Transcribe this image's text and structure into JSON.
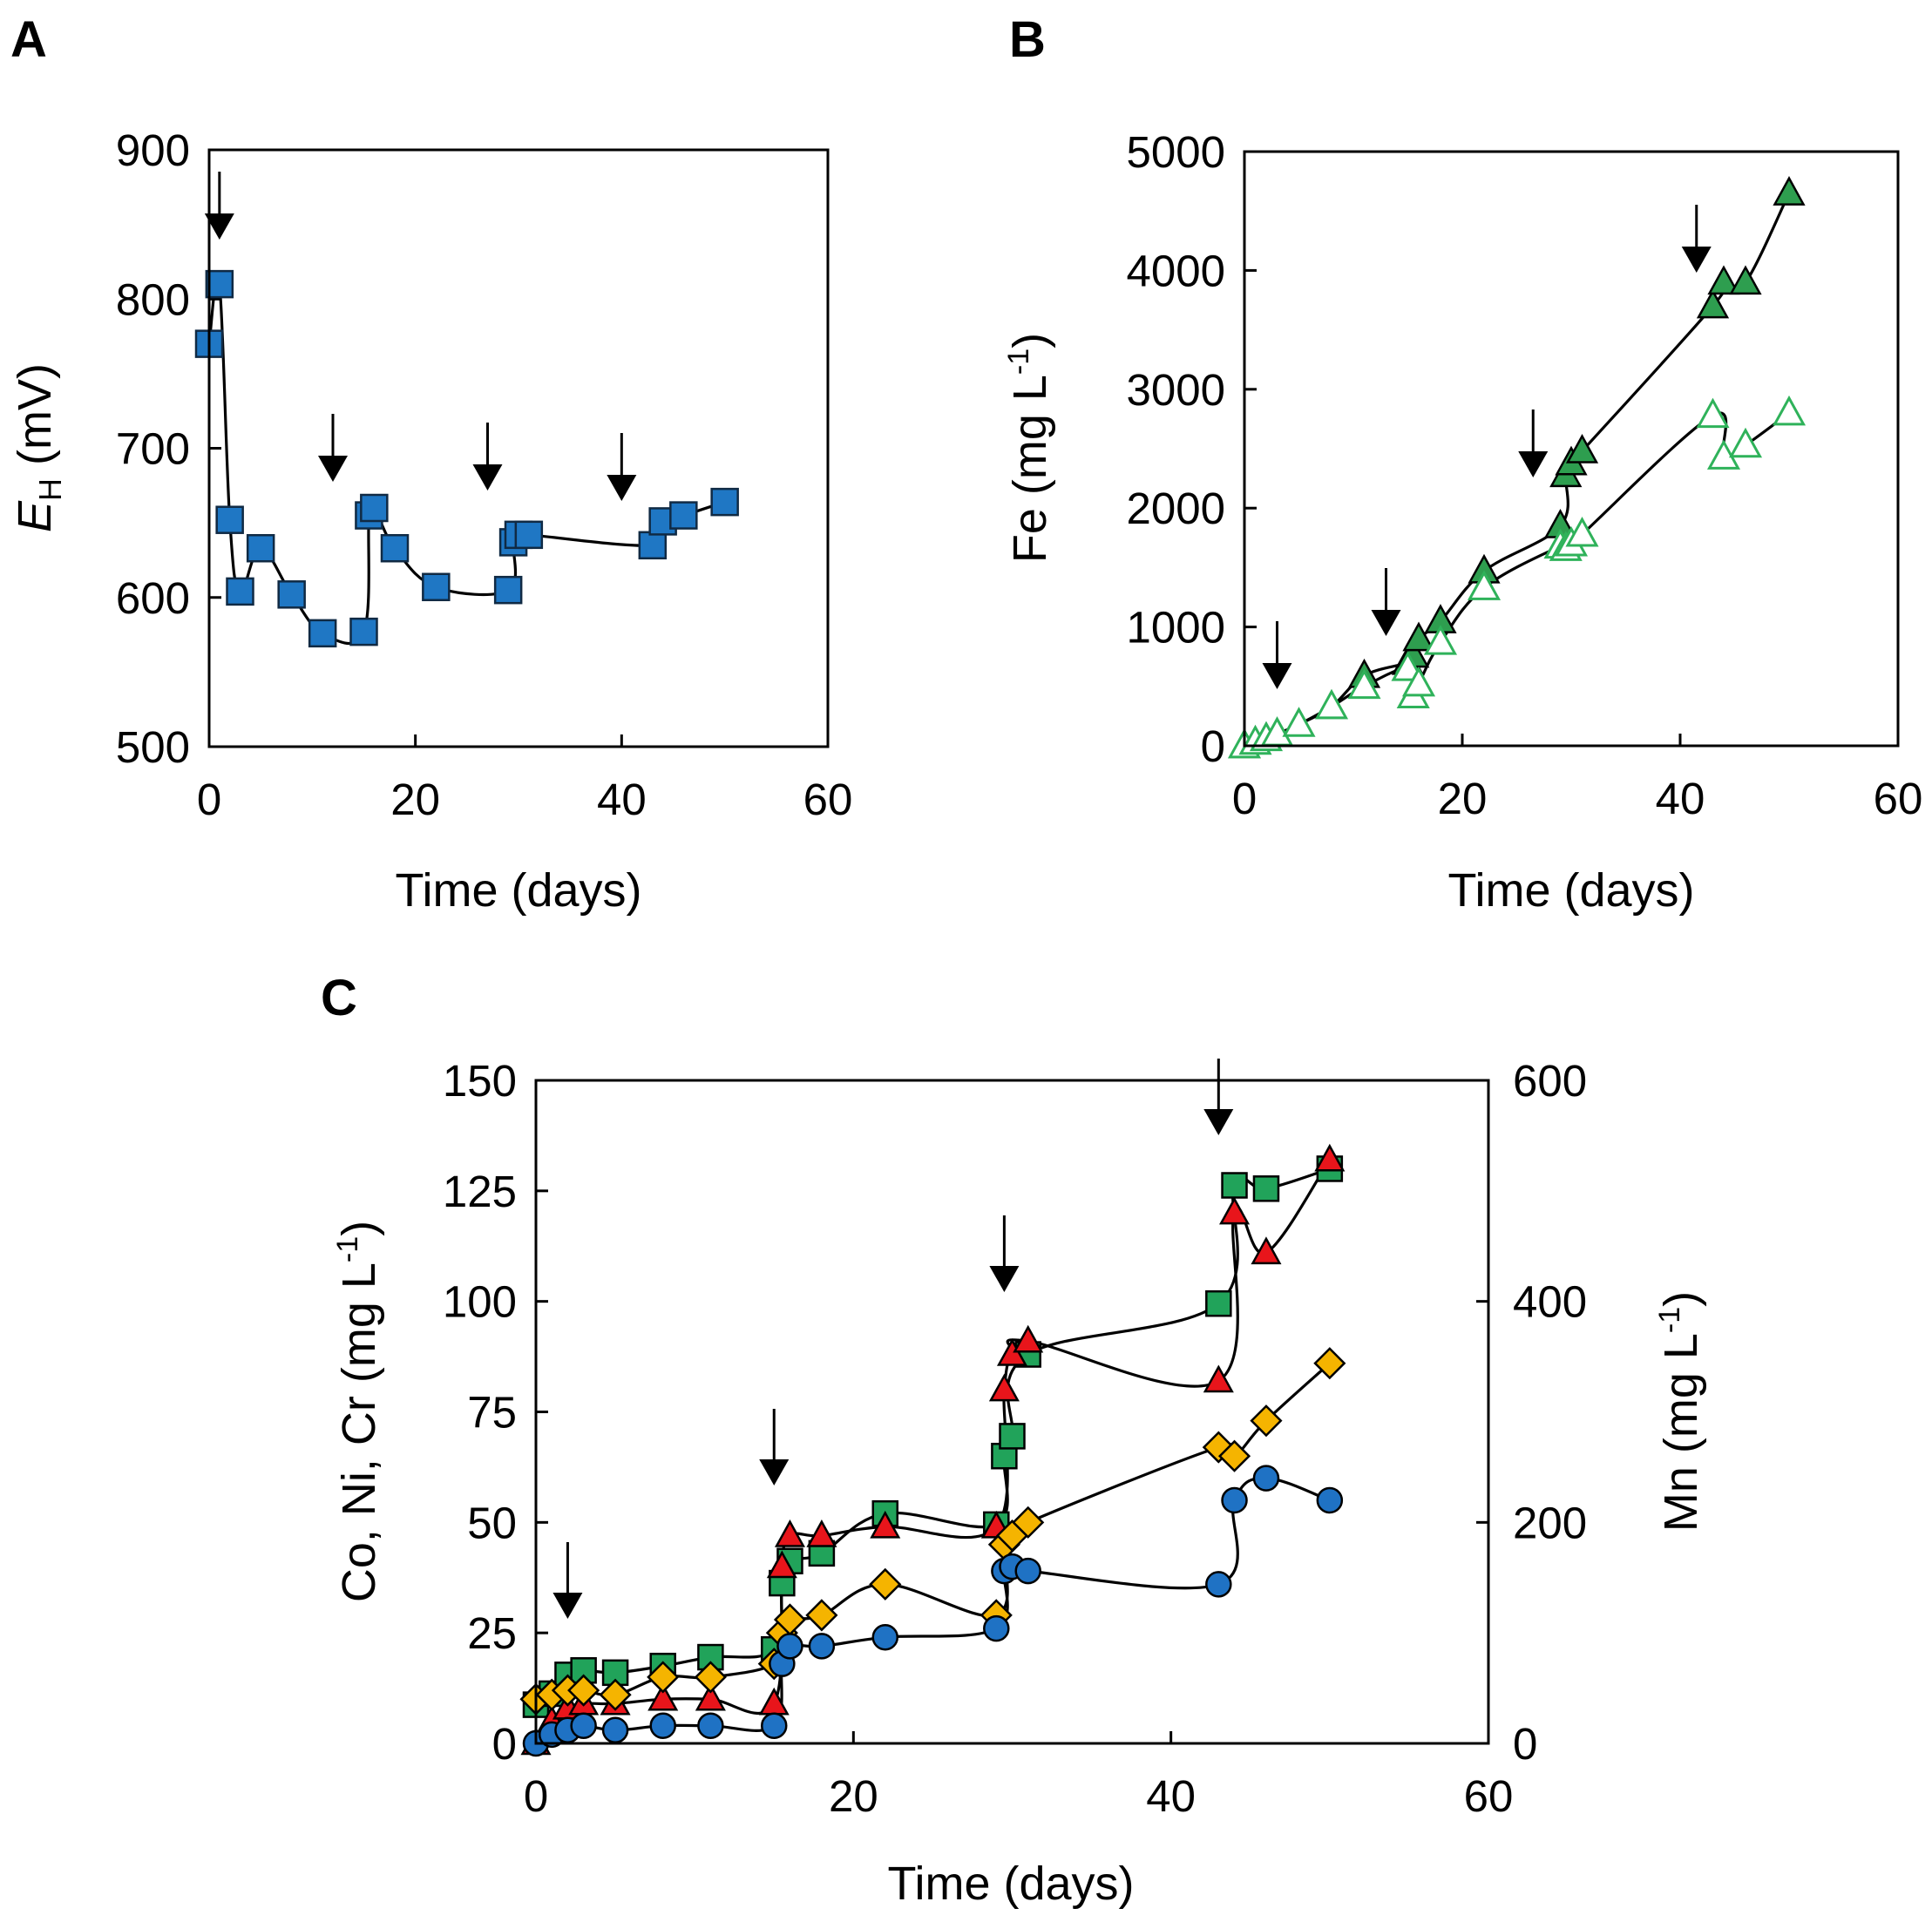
{
  "chart_data": [
    {
      "panel": "A",
      "type": "line",
      "xlabel": "Time (days)",
      "ylabel_main": "E",
      "ylabel_sub": "H",
      "ylabel_unit": " (mV)",
      "xlim": [
        0,
        60
      ],
      "ylim": [
        500,
        900
      ],
      "xticks": [
        "0",
        "20",
        "40",
        "60"
      ],
      "yticks": [
        "500",
        "600",
        "700",
        "800",
        "900"
      ],
      "series": [
        {
          "name": "EH",
          "marker": "square",
          "fill": "#1f77c4",
          "stroke": "#102a44",
          "x": [
            0,
            1,
            2,
            3,
            5,
            8,
            11,
            15,
            15.5,
            16,
            18,
            22,
            29,
            29.5,
            30,
            31,
            43,
            44,
            46,
            50
          ],
          "y": [
            770,
            810,
            652,
            604,
            633,
            602,
            576,
            577,
            655,
            660,
            633,
            607,
            605,
            637,
            642,
            642,
            635,
            651,
            655,
            664
          ]
        }
      ],
      "arrows_x": [
        1,
        12,
        27,
        40
      ]
    },
    {
      "panel": "B",
      "type": "line",
      "xlabel": "Time (days)",
      "ylabel_text": "Fe (mg L",
      "ylabel_sup": "-1",
      "ylabel_close": ")",
      "xlim": [
        0,
        60
      ],
      "ylim": [
        0,
        5000
      ],
      "xticks": [
        "0",
        "20",
        "40",
        "60"
      ],
      "yticks": [
        "0",
        "1000",
        "2000",
        "3000",
        "4000",
        "5000"
      ],
      "series": [
        {
          "name": "Fe filled",
          "marker": "triangle",
          "fill": "#2e9e4f",
          "stroke": "#000000",
          "x": [
            0,
            1,
            2,
            3,
            5,
            8,
            11,
            15,
            15.5,
            16,
            18,
            22,
            29,
            29.5,
            30,
            31,
            43,
            44,
            46,
            50
          ],
          "y": [
            0,
            30,
            60,
            100,
            180,
            330,
            590,
            700,
            760,
            900,
            1050,
            1470,
            1850,
            2280,
            2380,
            2480,
            3700,
            3900,
            3900,
            4650
          ]
        },
        {
          "name": "Fe open",
          "marker": "triangle-open",
          "fill": "none",
          "stroke": "#2fb25a",
          "x": [
            0,
            1,
            2,
            3,
            5,
            8,
            11,
            15,
            15.5,
            16,
            18,
            22,
            29,
            29.5,
            30,
            31,
            43,
            44,
            46,
            50
          ],
          "y": [
            0,
            30,
            60,
            100,
            180,
            330,
            500,
            650,
            420,
            520,
            870,
            1330,
            1680,
            1660,
            1700,
            1780,
            2780,
            2430,
            2530,
            2800
          ]
        }
      ],
      "arrows_x": [
        3,
        13,
        26.5,
        41.5
      ]
    },
    {
      "panel": "C",
      "type": "line",
      "xlabel": "Time (days)",
      "ylabel_left_text": "Co, Ni, Cr (mg L",
      "ylabel_left_sup": "-1",
      "ylabel_left_close": ")",
      "ylabel_right_text": "Mn (mg L",
      "ylabel_right_sup": "-1",
      "ylabel_right_close": ")",
      "xlim": [
        0,
        60
      ],
      "ylim_left": [
        0,
        150
      ],
      "ylim_right": [
        0,
        600
      ],
      "xticks": [
        "0",
        "20",
        "40",
        "60"
      ],
      "yticks_left": [
        "0",
        "25",
        "50",
        "75",
        "100",
        "125",
        "150"
      ],
      "yticks_right": [
        "0",
        "200",
        "400",
        "600"
      ],
      "series": [
        {
          "name": "Mn",
          "axis": "right",
          "marker": "square",
          "fill": "#21a35a",
          "stroke": "#000000",
          "x": [
            0,
            1,
            2,
            3,
            5,
            8,
            11,
            15,
            15.5,
            16,
            18,
            22,
            29,
            29.5,
            30,
            31,
            43,
            44,
            46,
            50
          ],
          "y": [
            35,
            45,
            62,
            66,
            64,
            70,
            78,
            85,
            145,
            165,
            172,
            208,
            198,
            260,
            278,
            352,
            398,
            505,
            502,
            520
          ]
        },
        {
          "name": "Cr",
          "axis": "left",
          "marker": "triangle",
          "fill": "#e8151b",
          "stroke": "#000000",
          "x": [
            0,
            1,
            2,
            3,
            5,
            8,
            11,
            15,
            15.5,
            16,
            18,
            22,
            29,
            29.5,
            30,
            31,
            43,
            44,
            46,
            50
          ],
          "y": [
            0,
            5,
            8,
            9,
            9,
            10,
            10,
            9,
            40,
            47,
            47,
            49,
            49,
            80,
            88,
            91,
            82,
            120,
            111,
            132
          ]
        },
        {
          "name": "Ni",
          "axis": "left",
          "marker": "diamond",
          "fill": "#f5b400",
          "stroke": "#000000",
          "x": [
            0,
            1,
            2,
            3,
            5,
            8,
            11,
            15,
            15.5,
            16,
            18,
            22,
            29,
            29.5,
            30,
            31,
            43,
            44,
            46,
            50
          ],
          "y": [
            10,
            11,
            12,
            12,
            11,
            15,
            15,
            18,
            25,
            28,
            29,
            36,
            29,
            45,
            47,
            50,
            67,
            65,
            73,
            86
          ]
        },
        {
          "name": "Co",
          "axis": "left",
          "marker": "circle",
          "fill": "#1f72c4",
          "stroke": "#000000",
          "x": [
            0,
            1,
            2,
            3,
            5,
            8,
            11,
            15,
            15.5,
            16,
            18,
            22,
            29,
            29.5,
            30,
            31,
            43,
            44,
            46,
            50
          ],
          "y": [
            0,
            2,
            3,
            4,
            3,
            4,
            4,
            4,
            18,
            22,
            22,
            24,
            26,
            39,
            40,
            39,
            36,
            55,
            60,
            55
          ]
        }
      ],
      "arrows_x": [
        2,
        15,
        29.5,
        43
      ]
    }
  ]
}
